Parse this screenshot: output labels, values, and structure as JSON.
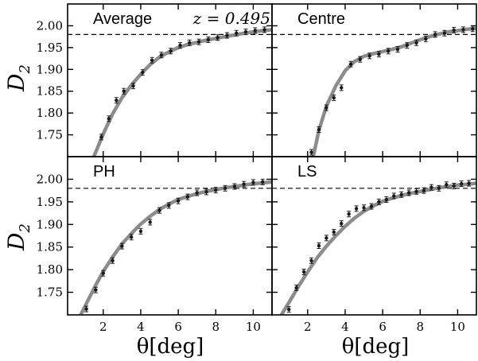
{
  "figure": {
    "redshift_label": "z = 0.495",
    "y_axis_label": "D",
    "y_axis_subscript": "2",
    "x_axis_label": "θ[deg]"
  },
  "colors": {
    "curve": "#8c8c8c",
    "points": "#1a1a1a",
    "axes": "#000000",
    "reference_line": "#000000"
  },
  "chart_data": [
    {
      "type": "scatter",
      "title": "Average",
      "xlim": [
        0.1,
        11.0
      ],
      "ylim": [
        1.7,
        2.05
      ],
      "xticks": [
        2,
        4,
        6,
        8,
        10
      ],
      "yticks": [
        1.75,
        1.8,
        1.85,
        1.9,
        1.95,
        2.0
      ],
      "reference_line": 1.98,
      "series": [
        {
          "kind": "points",
          "x": [
            1.9,
            2.3,
            2.7,
            3.1,
            3.6,
            4.1,
            4.6,
            5.1,
            5.6,
            6.1,
            6.6,
            7.1,
            7.6,
            8.1,
            8.6,
            9.1,
            9.6,
            10.1,
            10.6
          ],
          "y": [
            1.745,
            1.787,
            1.829,
            1.85,
            1.862,
            1.893,
            1.921,
            1.933,
            1.942,
            1.955,
            1.961,
            1.963,
            1.968,
            1.973,
            1.978,
            1.983,
            1.986,
            1.989,
            1.991
          ]
        },
        {
          "kind": "model",
          "x": [
            1.5,
            2.0,
            2.5,
            3.0,
            3.5,
            4.0,
            4.5,
            5.0,
            5.5,
            6.0,
            6.5,
            7.0,
            7.5,
            8.0,
            8.5,
            9.0,
            9.5,
            10.0,
            10.5,
            11.0
          ],
          "y": [
            1.7,
            1.752,
            1.798,
            1.835,
            1.864,
            1.889,
            1.911,
            1.928,
            1.94,
            1.95,
            1.957,
            1.962,
            1.967,
            1.971,
            1.975,
            1.979,
            1.983,
            1.986,
            1.989,
            1.991
          ]
        }
      ]
    },
    {
      "type": "scatter",
      "title": "Centre",
      "xlim": [
        0.1,
        11.0
      ],
      "ylim": [
        1.7,
        2.05
      ],
      "xticks": [
        2,
        4,
        6,
        8,
        10
      ],
      "yticks": [
        1.75,
        1.8,
        1.85,
        1.9,
        1.95,
        2.0
      ],
      "reference_line": 1.98,
      "series": [
        {
          "kind": "points",
          "x": [
            2.2,
            2.6,
            3.0,
            3.4,
            3.8,
            4.3,
            4.8,
            5.3,
            5.8,
            6.3,
            6.8,
            7.3,
            7.8,
            8.3,
            8.8,
            9.3,
            9.8,
            10.3,
            10.8
          ],
          "y": [
            1.71,
            1.762,
            1.812,
            1.835,
            1.858,
            1.912,
            1.923,
            1.931,
            1.935,
            1.942,
            1.946,
            1.955,
            1.961,
            1.97,
            1.98,
            1.983,
            1.99,
            1.991,
            1.993
          ]
        },
        {
          "kind": "model",
          "x": [
            2.3,
            2.6,
            3.0,
            3.5,
            4.0,
            4.5,
            5.0,
            5.5,
            6.0,
            6.5,
            7.0,
            7.5,
            8.0,
            8.5,
            9.0,
            9.5,
            10.0,
            10.5,
            11.0
          ],
          "y": [
            1.7,
            1.76,
            1.816,
            1.862,
            1.897,
            1.918,
            1.93,
            1.936,
            1.941,
            1.946,
            1.952,
            1.96,
            1.968,
            1.975,
            1.981,
            1.986,
            1.989,
            1.992,
            1.994
          ]
        }
      ]
    },
    {
      "type": "scatter",
      "title": "PH",
      "xlim": [
        0.1,
        11.0
      ],
      "ylim": [
        1.7,
        2.05
      ],
      "xticks": [
        2,
        4,
        6,
        8,
        10
      ],
      "yticks": [
        1.75,
        1.8,
        1.85,
        1.9,
        1.95,
        2.0
      ],
      "reference_line": 1.98,
      "series": [
        {
          "kind": "points",
          "x": [
            1.1,
            1.6,
            2.0,
            2.5,
            3.0,
            3.5,
            4.0,
            4.5,
            5.0,
            5.5,
            6.0,
            6.5,
            7.0,
            7.5,
            8.0,
            8.5,
            9.0,
            9.5,
            10.0,
            10.5
          ],
          "y": [
            1.713,
            1.755,
            1.792,
            1.82,
            1.852,
            1.872,
            1.885,
            1.905,
            1.931,
            1.942,
            1.952,
            1.961,
            1.97,
            1.972,
            1.976,
            1.98,
            1.984,
            1.989,
            1.993,
            1.994
          ]
        },
        {
          "kind": "model",
          "x": [
            0.8,
            1.2,
            1.6,
            2.0,
            2.5,
            3.0,
            3.5,
            4.0,
            4.5,
            5.0,
            5.5,
            6.0,
            6.5,
            7.0,
            7.5,
            8.0,
            8.5,
            9.0,
            9.5,
            10.0,
            10.5,
            11.0
          ],
          "y": [
            1.7,
            1.733,
            1.766,
            1.796,
            1.828,
            1.857,
            1.88,
            1.901,
            1.918,
            1.933,
            1.945,
            1.955,
            1.962,
            1.968,
            1.973,
            1.977,
            1.981,
            1.984,
            1.987,
            1.99,
            1.992,
            1.994
          ]
        }
      ]
    },
    {
      "type": "scatter",
      "title": "LS",
      "xlim": [
        0.1,
        11.0
      ],
      "ylim": [
        1.7,
        2.05
      ],
      "xticks": [
        2,
        4,
        6,
        8,
        10
      ],
      "yticks": [
        1.75,
        1.8,
        1.85,
        1.9,
        1.95,
        2.0
      ],
      "reference_line": 1.98,
      "series": [
        {
          "kind": "points",
          "x": [
            1.0,
            1.4,
            1.8,
            2.2,
            2.6,
            3.0,
            3.4,
            3.8,
            4.2,
            4.6,
            5.0,
            5.4,
            5.8,
            6.2,
            6.6,
            7.0,
            7.4,
            7.8,
            8.2,
            8.6,
            9.0,
            9.4,
            9.8,
            10.2,
            10.6
          ],
          "y": [
            1.712,
            1.76,
            1.795,
            1.82,
            1.853,
            1.87,
            1.883,
            1.902,
            1.923,
            1.935,
            1.937,
            1.94,
            1.95,
            1.955,
            1.963,
            1.966,
            1.97,
            1.973,
            1.975,
            1.982,
            1.98,
            1.988,
            1.985,
            1.99,
            1.991
          ]
        },
        {
          "kind": "model",
          "x": [
            0.6,
            1.0,
            1.5,
            2.0,
            2.5,
            3.0,
            3.5,
            4.0,
            4.5,
            5.0,
            5.5,
            6.0,
            6.5,
            7.0,
            7.5,
            8.0,
            8.5,
            9.0,
            9.5,
            10.0,
            10.5,
            11.0
          ],
          "y": [
            1.7,
            1.727,
            1.762,
            1.795,
            1.826,
            1.852,
            1.875,
            1.896,
            1.914,
            1.929,
            1.941,
            1.951,
            1.958,
            1.964,
            1.969,
            1.973,
            1.977,
            1.981,
            1.984,
            1.987,
            1.989,
            1.991
          ]
        }
      ]
    }
  ]
}
